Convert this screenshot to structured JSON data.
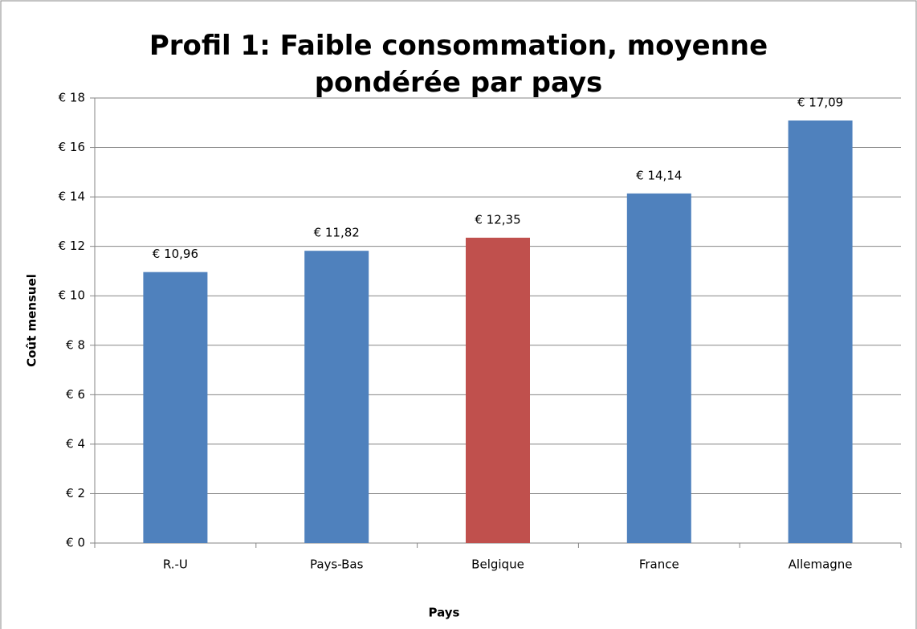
{
  "chart_data": {
    "type": "bar",
    "title": "Profil 1: Faible consommation, moyenne pondérée par pays",
    "x_label": "Pays",
    "y_label": "Coût mensuel",
    "categories": [
      "R.-U",
      "Pays-Bas",
      "Belgique",
      "France",
      "Allemagne"
    ],
    "values": [
      10.96,
      11.82,
      12.35,
      14.14,
      17.09
    ],
    "value_labels": [
      "€ 10,96",
      "€ 11,82",
      "€ 12,35",
      "€ 14,14",
      "€ 17,09"
    ],
    "colors": [
      "#4f81bd",
      "#4f81bd",
      "#c0504d",
      "#4f81bd",
      "#4f81bd"
    ],
    "ylim": [
      0,
      18
    ],
    "yticks": [
      {
        "value": 0,
        "label": "€ 0"
      },
      {
        "value": 2,
        "label": "€ 2"
      },
      {
        "value": 4,
        "label": "€ 4"
      },
      {
        "value": 6,
        "label": "€ 6"
      },
      {
        "value": 8,
        "label": "€ 8"
      },
      {
        "value": 10,
        "label": "€ 10"
      },
      {
        "value": 12,
        "label": "€ 12"
      },
      {
        "value": 14,
        "label": "€ 14"
      },
      {
        "value": 16,
        "label": "€ 16"
      },
      {
        "value": 18,
        "label": "€ 18"
      }
    ],
    "grid": true
  }
}
